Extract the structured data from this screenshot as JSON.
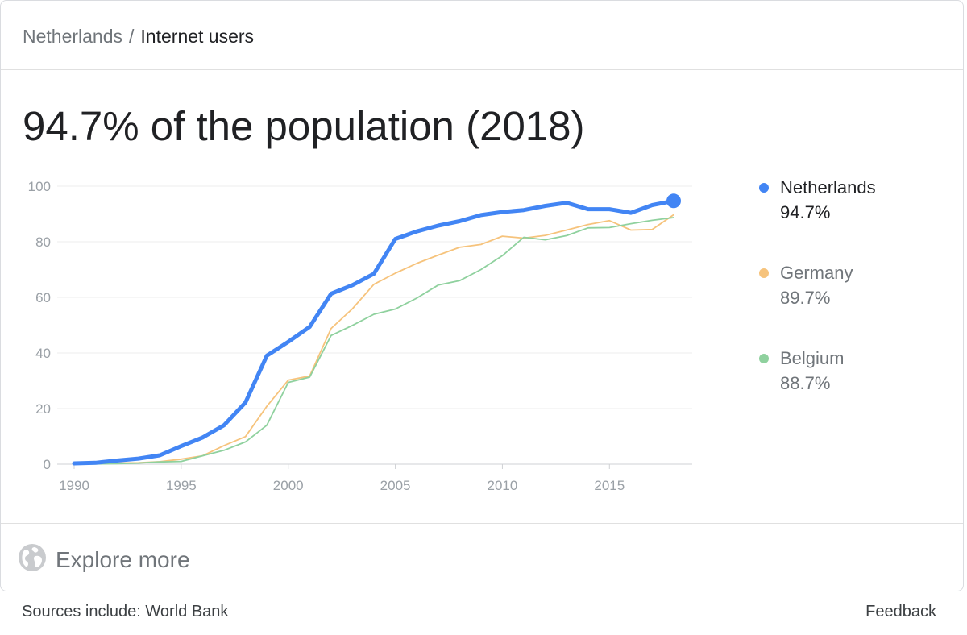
{
  "breadcrumb": {
    "parent": "Netherlands",
    "separator": "/",
    "current": "Internet users"
  },
  "headline": "94.7% of the population (2018)",
  "explore": {
    "label": "Explore more",
    "icon": "globe-icon"
  },
  "footer": {
    "source": "Sources include: World Bank",
    "feedback": "Feedback"
  },
  "chart_data": {
    "type": "line",
    "title": "",
    "xlabel": "",
    "ylabel": "",
    "xlim": [
      1990,
      2018
    ],
    "ylim": [
      0,
      100
    ],
    "x_ticks": [
      "1990",
      "1995",
      "2000",
      "2005",
      "2010",
      "2015"
    ],
    "y_ticks": [
      "0",
      "20",
      "40",
      "60",
      "80",
      "100"
    ],
    "grid": true,
    "legend_position": "right",
    "x": [
      1990,
      1991,
      1992,
      1993,
      1994,
      1995,
      1996,
      1997,
      1998,
      1999,
      2000,
      2001,
      2002,
      2003,
      2004,
      2005,
      2006,
      2007,
      2008,
      2009,
      2010,
      2011,
      2012,
      2013,
      2014,
      2015,
      2016,
      2017,
      2018
    ],
    "series": [
      {
        "name": "Netherlands",
        "value_label": "94.7%",
        "color": "#4285f4",
        "highlighted": true,
        "values": [
          0.3,
          0.5,
          1.3,
          2.0,
          3.2,
          6.5,
          9.6,
          14.0,
          22.2,
          39.0,
          44.0,
          49.4,
          61.3,
          64.4,
          68.5,
          81.0,
          83.7,
          85.8,
          87.4,
          89.6,
          90.7,
          91.4,
          92.9,
          94.0,
          91.7,
          91.7,
          90.4,
          93.2,
          94.7
        ]
      },
      {
        "name": "Germany",
        "value_label": "89.7%",
        "color": "#f6c37c",
        "highlighted": false,
        "values": [
          0.1,
          0.2,
          0.4,
          0.5,
          0.9,
          1.8,
          3.0,
          6.7,
          9.9,
          20.8,
          30.2,
          31.7,
          48.8,
          55.9,
          64.7,
          68.7,
          72.2,
          75.2,
          78.0,
          79.0,
          82.0,
          81.3,
          82.3,
          84.2,
          86.2,
          87.6,
          84.2,
          84.4,
          89.7
        ]
      },
      {
        "name": "Belgium",
        "value_label": "88.7%",
        "color": "#8fd19e",
        "highlighted": false,
        "values": [
          0.0,
          0.1,
          0.2,
          0.4,
          0.8,
          1.0,
          3.0,
          5.0,
          8.0,
          14.0,
          29.4,
          31.3,
          46.3,
          49.9,
          53.9,
          55.8,
          59.7,
          64.4,
          66.0,
          70.0,
          75.0,
          81.6,
          80.7,
          82.2,
          85.0,
          85.1,
          86.5,
          87.7,
          88.7
        ]
      }
    ]
  }
}
